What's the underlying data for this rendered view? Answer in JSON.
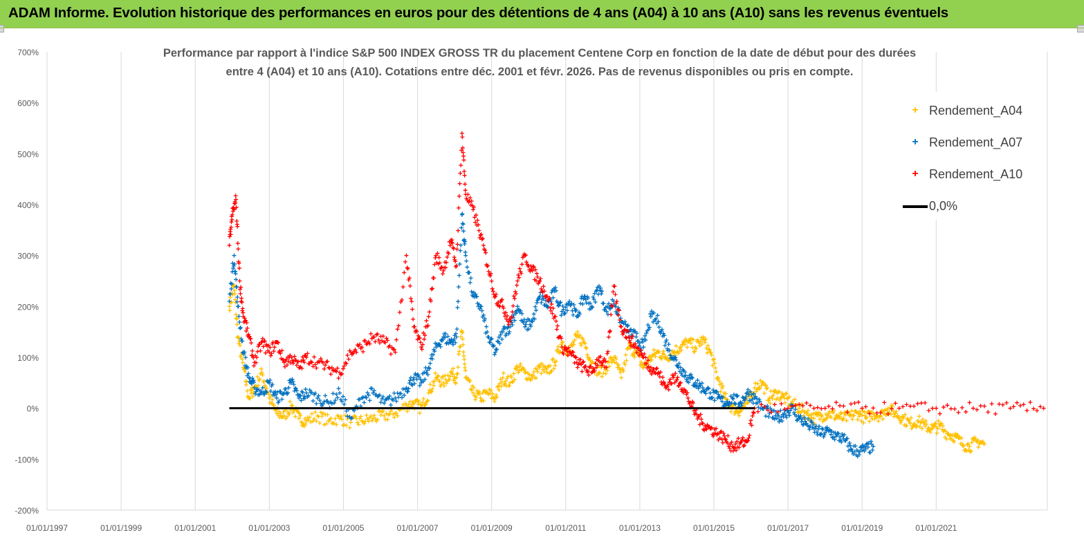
{
  "banner": {
    "title": "ADAM Informe. Evolution historique des performances en euros pour des détentions de 4 ans (A04) à 10 ans (A10) sans les revenus éventuels",
    "background": "#92d050"
  },
  "chart_data": {
    "type": "scatter",
    "title_line1": "Performance par rapport à l'indice S&P 500 INDEX GROSS TR  du placement Centene Corp en fonction de la date de début pour des durées",
    "title_line2": "entre 4 (A04) et 10 ans (A10). Cotations entre déc. 2001 et févr. 2026. Pas de revenus disponibles ou pris en compte.",
    "xlabel": "",
    "ylabel": "",
    "x_ticks": [
      "01/01/1997",
      "01/01/1999",
      "01/01/2001",
      "01/01/2003",
      "01/01/2005",
      "01/01/2007",
      "01/01/2009",
      "01/01/2011",
      "01/01/2013",
      "01/01/2015",
      "01/01/2017",
      "01/01/2019",
      "01/01/2021"
    ],
    "y_ticks": [
      "700%",
      "600%",
      "500%",
      "400%",
      "300%",
      "200%",
      "100%",
      "0%",
      "-100%",
      "-200%"
    ],
    "xlim": [
      1997.0,
      2024.0
    ],
    "ylim": [
      -200,
      700
    ],
    "grid": "vertical",
    "legend_position": "top-right",
    "series": [
      {
        "name": "Rendement_A04",
        "color": "#ffc000",
        "marker": "+",
        "points": [
          [
            2001.92,
            200
          ],
          [
            2002.05,
            240
          ],
          [
            2002.15,
            140
          ],
          [
            2002.3,
            80
          ],
          [
            2002.45,
            20
          ],
          [
            2002.6,
            40
          ],
          [
            2002.8,
            70
          ],
          [
            2003.0,
            20
          ],
          [
            2003.2,
            -10
          ],
          [
            2003.4,
            -15
          ],
          [
            2003.6,
            5
          ],
          [
            2003.8,
            -20
          ],
          [
            2004.0,
            -25
          ],
          [
            2004.3,
            -15
          ],
          [
            2004.6,
            -25
          ],
          [
            2004.9,
            -20
          ],
          [
            2005.2,
            -28
          ],
          [
            2005.5,
            -25
          ],
          [
            2005.8,
            -20
          ],
          [
            2006.1,
            -15
          ],
          [
            2006.4,
            -10
          ],
          [
            2006.7,
            5
          ],
          [
            2006.9,
            10
          ],
          [
            2007.1,
            0
          ],
          [
            2007.3,
            30
          ],
          [
            2007.5,
            60
          ],
          [
            2007.7,
            50
          ],
          [
            2007.9,
            70
          ],
          [
            2008.05,
            60
          ],
          [
            2008.2,
            150
          ],
          [
            2008.3,
            60
          ],
          [
            2008.5,
            30
          ],
          [
            2008.7,
            20
          ],
          [
            2008.9,
            30
          ],
          [
            2009.1,
            20
          ],
          [
            2009.3,
            60
          ],
          [
            2009.5,
            50
          ],
          [
            2009.7,
            80
          ],
          [
            2009.9,
            70
          ],
          [
            2010.1,
            60
          ],
          [
            2010.3,
            80
          ],
          [
            2010.5,
            70
          ],
          [
            2010.7,
            90
          ],
          [
            2010.9,
            130
          ],
          [
            2011.1,
            110
          ],
          [
            2011.3,
            140
          ],
          [
            2011.5,
            130
          ],
          [
            2011.7,
            90
          ],
          [
            2011.9,
            70
          ],
          [
            2012.1,
            80
          ],
          [
            2012.3,
            100
          ],
          [
            2012.5,
            60
          ],
          [
            2012.7,
            120
          ],
          [
            2012.9,
            110
          ],
          [
            2013.1,
            80
          ],
          [
            2013.3,
            100
          ],
          [
            2013.5,
            110
          ],
          [
            2013.7,
            100
          ],
          [
            2013.9,
            110
          ],
          [
            2014.1,
            120
          ],
          [
            2014.3,
            130
          ],
          [
            2014.5,
            120
          ],
          [
            2014.7,
            135
          ],
          [
            2014.9,
            110
          ],
          [
            2015.1,
            60
          ],
          [
            2015.3,
            20
          ],
          [
            2015.5,
            0
          ],
          [
            2015.7,
            -5
          ],
          [
            2015.9,
            10
          ],
          [
            2016.1,
            40
          ],
          [
            2016.3,
            50
          ],
          [
            2016.5,
            20
          ],
          [
            2016.7,
            30
          ],
          [
            2016.9,
            20
          ],
          [
            2017.1,
            10
          ],
          [
            2017.3,
            0
          ],
          [
            2017.5,
            -10
          ],
          [
            2017.7,
            -20
          ],
          [
            2017.9,
            -15
          ],
          [
            2018.1,
            -10
          ],
          [
            2018.3,
            -15
          ],
          [
            2018.5,
            -20
          ],
          [
            2018.7,
            -15
          ],
          [
            2018.9,
            -10
          ],
          [
            2019.1,
            -20
          ],
          [
            2019.3,
            -10
          ],
          [
            2019.5,
            -15
          ],
          [
            2019.7,
            0
          ],
          [
            2019.9,
            -10
          ],
          [
            2020.1,
            -20
          ],
          [
            2020.3,
            -30
          ],
          [
            2020.5,
            -25
          ],
          [
            2020.7,
            -35
          ],
          [
            2020.9,
            -40
          ],
          [
            2021.1,
            -35
          ],
          [
            2021.3,
            -50
          ],
          [
            2021.5,
            -55
          ],
          [
            2021.7,
            -70
          ],
          [
            2021.9,
            -75
          ],
          [
            2022.1,
            -65
          ],
          [
            2022.3,
            -70
          ]
        ]
      },
      {
        "name": "Rendement_A07",
        "color": "#0070c0",
        "marker": "+",
        "points": [
          [
            2001.92,
            210
          ],
          [
            2002.05,
            300
          ],
          [
            2002.15,
            200
          ],
          [
            2002.3,
            110
          ],
          [
            2002.45,
            60
          ],
          [
            2002.6,
            40
          ],
          [
            2002.8,
            30
          ],
          [
            2003.0,
            50
          ],
          [
            2003.2,
            20
          ],
          [
            2003.4,
            30
          ],
          [
            2003.6,
            50
          ],
          [
            2003.8,
            20
          ],
          [
            2004.0,
            30
          ],
          [
            2004.3,
            20
          ],
          [
            2004.6,
            10
          ],
          [
            2004.9,
            30
          ],
          [
            2005.2,
            -20
          ],
          [
            2005.5,
            20
          ],
          [
            2005.8,
            30
          ],
          [
            2006.1,
            10
          ],
          [
            2006.4,
            20
          ],
          [
            2006.7,
            40
          ],
          [
            2006.9,
            60
          ],
          [
            2007.1,
            50
          ],
          [
            2007.3,
            80
          ],
          [
            2007.5,
            120
          ],
          [
            2007.7,
            140
          ],
          [
            2007.9,
            130
          ],
          [
            2008.05,
            140
          ],
          [
            2008.2,
            380
          ],
          [
            2008.3,
            300
          ],
          [
            2008.5,
            220
          ],
          [
            2008.7,
            200
          ],
          [
            2008.9,
            140
          ],
          [
            2009.1,
            110
          ],
          [
            2009.3,
            150
          ],
          [
            2009.5,
            160
          ],
          [
            2009.7,
            200
          ],
          [
            2009.9,
            160
          ],
          [
            2010.1,
            170
          ],
          [
            2010.3,
            220
          ],
          [
            2010.5,
            200
          ],
          [
            2010.7,
            230
          ],
          [
            2010.9,
            190
          ],
          [
            2011.1,
            210
          ],
          [
            2011.3,
            180
          ],
          [
            2011.5,
            220
          ],
          [
            2011.7,
            200
          ],
          [
            2011.9,
            240
          ],
          [
            2012.1,
            190
          ],
          [
            2012.3,
            210
          ],
          [
            2012.5,
            170
          ],
          [
            2012.7,
            150
          ],
          [
            2012.9,
            140
          ],
          [
            2013.1,
            120
          ],
          [
            2013.3,
            180
          ],
          [
            2013.5,
            170
          ],
          [
            2013.7,
            130
          ],
          [
            2013.9,
            100
          ],
          [
            2014.1,
            80
          ],
          [
            2014.3,
            60
          ],
          [
            2014.5,
            50
          ],
          [
            2014.7,
            40
          ],
          [
            2014.9,
            30
          ],
          [
            2015.1,
            20
          ],
          [
            2015.3,
            10
          ],
          [
            2015.5,
            20
          ],
          [
            2015.7,
            10
          ],
          [
            2015.9,
            30
          ],
          [
            2016.1,
            20
          ],
          [
            2016.3,
            0
          ],
          [
            2016.5,
            -10
          ],
          [
            2016.7,
            -20
          ],
          [
            2016.9,
            -10
          ],
          [
            2017.1,
            0
          ],
          [
            2017.3,
            -20
          ],
          [
            2017.5,
            -30
          ],
          [
            2017.7,
            -40
          ],
          [
            2017.9,
            -50
          ],
          [
            2018.1,
            -45
          ],
          [
            2018.3,
            -55
          ],
          [
            2018.5,
            -60
          ],
          [
            2018.7,
            -80
          ],
          [
            2018.9,
            -85
          ],
          [
            2019.1,
            -80
          ],
          [
            2019.3,
            -75
          ]
        ]
      },
      {
        "name": "Rendement_A10",
        "color": "#ff0000",
        "marker": "+",
        "points": [
          [
            2001.92,
            320
          ],
          [
            2002.0,
            380
          ],
          [
            2002.1,
            410
          ],
          [
            2002.2,
            250
          ],
          [
            2002.3,
            180
          ],
          [
            2002.45,
            140
          ],
          [
            2002.6,
            90
          ],
          [
            2002.8,
            130
          ],
          [
            2003.0,
            110
          ],
          [
            2003.2,
            130
          ],
          [
            2003.4,
            90
          ],
          [
            2003.6,
            100
          ],
          [
            2003.8,
            80
          ],
          [
            2004.0,
            100
          ],
          [
            2004.3,
            90
          ],
          [
            2004.6,
            80
          ],
          [
            2004.9,
            70
          ],
          [
            2005.2,
            110
          ],
          [
            2005.5,
            120
          ],
          [
            2005.8,
            140
          ],
          [
            2006.1,
            130
          ],
          [
            2006.4,
            110
          ],
          [
            2006.7,
            300
          ],
          [
            2006.9,
            160
          ],
          [
            2007.1,
            120
          ],
          [
            2007.3,
            180
          ],
          [
            2007.5,
            300
          ],
          [
            2007.7,
            270
          ],
          [
            2007.9,
            330
          ],
          [
            2008.05,
            280
          ],
          [
            2008.2,
            540
          ],
          [
            2008.3,
            420
          ],
          [
            2008.5,
            390
          ],
          [
            2008.7,
            340
          ],
          [
            2008.9,
            280
          ],
          [
            2009.1,
            220
          ],
          [
            2009.3,
            200
          ],
          [
            2009.5,
            170
          ],
          [
            2009.7,
            250
          ],
          [
            2009.9,
            300
          ],
          [
            2010.1,
            270
          ],
          [
            2010.3,
            250
          ],
          [
            2010.5,
            220
          ],
          [
            2010.7,
            180
          ],
          [
            2010.9,
            120
          ],
          [
            2011.1,
            110
          ],
          [
            2011.3,
            90
          ],
          [
            2011.5,
            80
          ],
          [
            2011.7,
            70
          ],
          [
            2011.9,
            100
          ],
          [
            2012.1,
            80
          ],
          [
            2012.3,
            240
          ],
          [
            2012.5,
            160
          ],
          [
            2012.7,
            140
          ],
          [
            2012.9,
            120
          ],
          [
            2013.1,
            100
          ],
          [
            2013.3,
            80
          ],
          [
            2013.5,
            70
          ],
          [
            2013.7,
            40
          ],
          [
            2013.9,
            60
          ],
          [
            2014.1,
            50
          ],
          [
            2014.3,
            20
          ],
          [
            2014.5,
            -10
          ],
          [
            2014.7,
            -30
          ],
          [
            2014.9,
            -40
          ],
          [
            2015.1,
            -50
          ],
          [
            2015.3,
            -60
          ],
          [
            2015.5,
            -75
          ],
          [
            2015.7,
            -70
          ],
          [
            2015.9,
            -65
          ],
          [
            2016.1,
            0
          ],
          [
            2017.0,
            0
          ],
          [
            2018.0,
            0
          ],
          [
            2019.0,
            0
          ],
          [
            2020.0,
            0
          ],
          [
            2021.0,
            0
          ],
          [
            2022.0,
            0
          ],
          [
            2023.0,
            0
          ],
          [
            2023.9,
            0
          ]
        ]
      },
      {
        "name": "0,0%",
        "color": "#000000",
        "marker": "line",
        "points": [
          [
            2001.92,
            0
          ],
          [
            2016.1,
            0
          ]
        ]
      }
    ]
  }
}
